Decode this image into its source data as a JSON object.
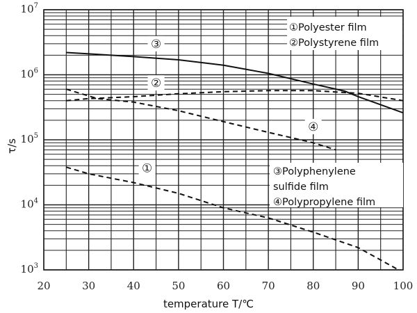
{
  "chart_data": {
    "type": "line",
    "title": "",
    "xlabel": "temperature T/℃",
    "ylabel": "τ/s",
    "xlim": [
      20,
      100
    ],
    "ylim": [
      1000,
      10000000
    ],
    "yscale": "log",
    "grid": true,
    "x_ticks": [
      "20",
      "30",
      "40",
      "50",
      "60",
      "70",
      "80",
      "90",
      "100"
    ],
    "y_ticks": [
      {
        "base": "10",
        "exp": "3",
        "value": 1000
      },
      {
        "base": "10",
        "exp": "4",
        "value": 10000
      },
      {
        "base": "10",
        "exp": "5",
        "value": 100000
      },
      {
        "base": "10",
        "exp": "6",
        "value": 1000000
      },
      {
        "base": "10",
        "exp": "7",
        "value": 10000000
      }
    ],
    "series": [
      {
        "id": "1",
        "marker": "①",
        "name": "Polyester film",
        "style": "dashed",
        "label_at": [
          43,
          37000
        ],
        "x": [
          25,
          30,
          40,
          50,
          60,
          70,
          80,
          90,
          99
        ],
        "y": [
          38000,
          30000,
          22000,
          15000,
          9000,
          6300,
          3800,
          2200,
          1000
        ]
      },
      {
        "id": "2",
        "marker": "②",
        "name": "Polystyrene film",
        "style": "dashed",
        "label_at": [
          45,
          750000
        ],
        "x": [
          25,
          30,
          40,
          50,
          60,
          70,
          80,
          90,
          100
        ],
        "y": [
          400000,
          430000,
          460000,
          510000,
          550000,
          570000,
          570000,
          520000,
          400000
        ]
      },
      {
        "id": "3",
        "marker": "③",
        "name": "Polyphenylene sulfide film",
        "style": "solid",
        "label_at": [
          45,
          3000000
        ],
        "x": [
          25,
          30,
          40,
          50,
          60,
          70,
          80,
          87,
          90,
          100
        ],
        "y": [
          2200000,
          2100000,
          1900000,
          1700000,
          1400000,
          1050000,
          720000,
          560000,
          460000,
          260000
        ]
      },
      {
        "id": "4",
        "marker": "④",
        "name": "Polypropylene film",
        "style": "dashed",
        "label_at": [
          80,
          160000
        ],
        "x": [
          25,
          32,
          40,
          50,
          60,
          70,
          80,
          85
        ],
        "y": [
          600000,
          430000,
          380000,
          280000,
          190000,
          130000,
          90000,
          70000
        ]
      }
    ],
    "legend": {
      "top_right": [
        "①Polyester film",
        "②Polystyrene film"
      ],
      "bottom_right": [
        "③Polyphenylene",
        "sulfide film",
        "④Polypropylene film"
      ]
    }
  }
}
